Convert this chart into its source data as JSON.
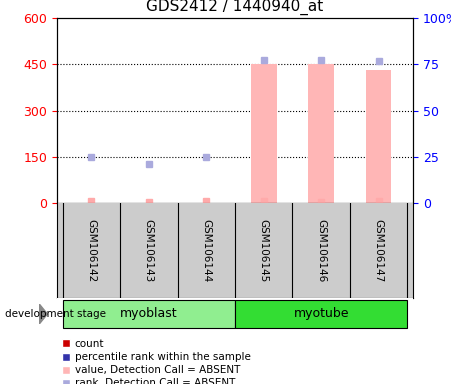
{
  "title": "GDS2412 / 1440940_at",
  "samples": [
    "GSM106142",
    "GSM106143",
    "GSM106144",
    "GSM106145",
    "GSM106146",
    "GSM106147"
  ],
  "groups": [
    {
      "label": "myoblast",
      "indices": [
        0,
        1,
        2
      ],
      "color": "#90ee90"
    },
    {
      "label": "myotube",
      "indices": [
        3,
        4,
        5
      ],
      "color": "#33dd33"
    }
  ],
  "bar_values": [
    0,
    0,
    0,
    450,
    450,
    430
  ],
  "bar_color": "#ffb6b6",
  "rank_values": [
    148,
    128,
    150,
    465,
    465,
    462
  ],
  "rank_color": "#aaaadd",
  "count_values": [
    5,
    4,
    7,
    5,
    4,
    5
  ],
  "count_color": "#ffaaaa",
  "ylim_left": [
    0,
    600
  ],
  "yticks_left": [
    0,
    150,
    300,
    450,
    600
  ],
  "ylim_right": [
    0,
    100
  ],
  "yticks_right": [
    0,
    25,
    50,
    75,
    100
  ],
  "ytick_labels_right": [
    "0",
    "25",
    "50",
    "75",
    "100%"
  ],
  "hgrid": [
    150,
    300,
    450
  ],
  "sample_bg": "#cccccc",
  "legend_items": [
    {
      "label": "count",
      "color": "#cc0000"
    },
    {
      "label": "percentile rank within the sample",
      "color": "#3333aa"
    },
    {
      "label": "value, Detection Call = ABSENT",
      "color": "#ffb6b6"
    },
    {
      "label": "rank, Detection Call = ABSENT",
      "color": "#aaaadd"
    }
  ]
}
